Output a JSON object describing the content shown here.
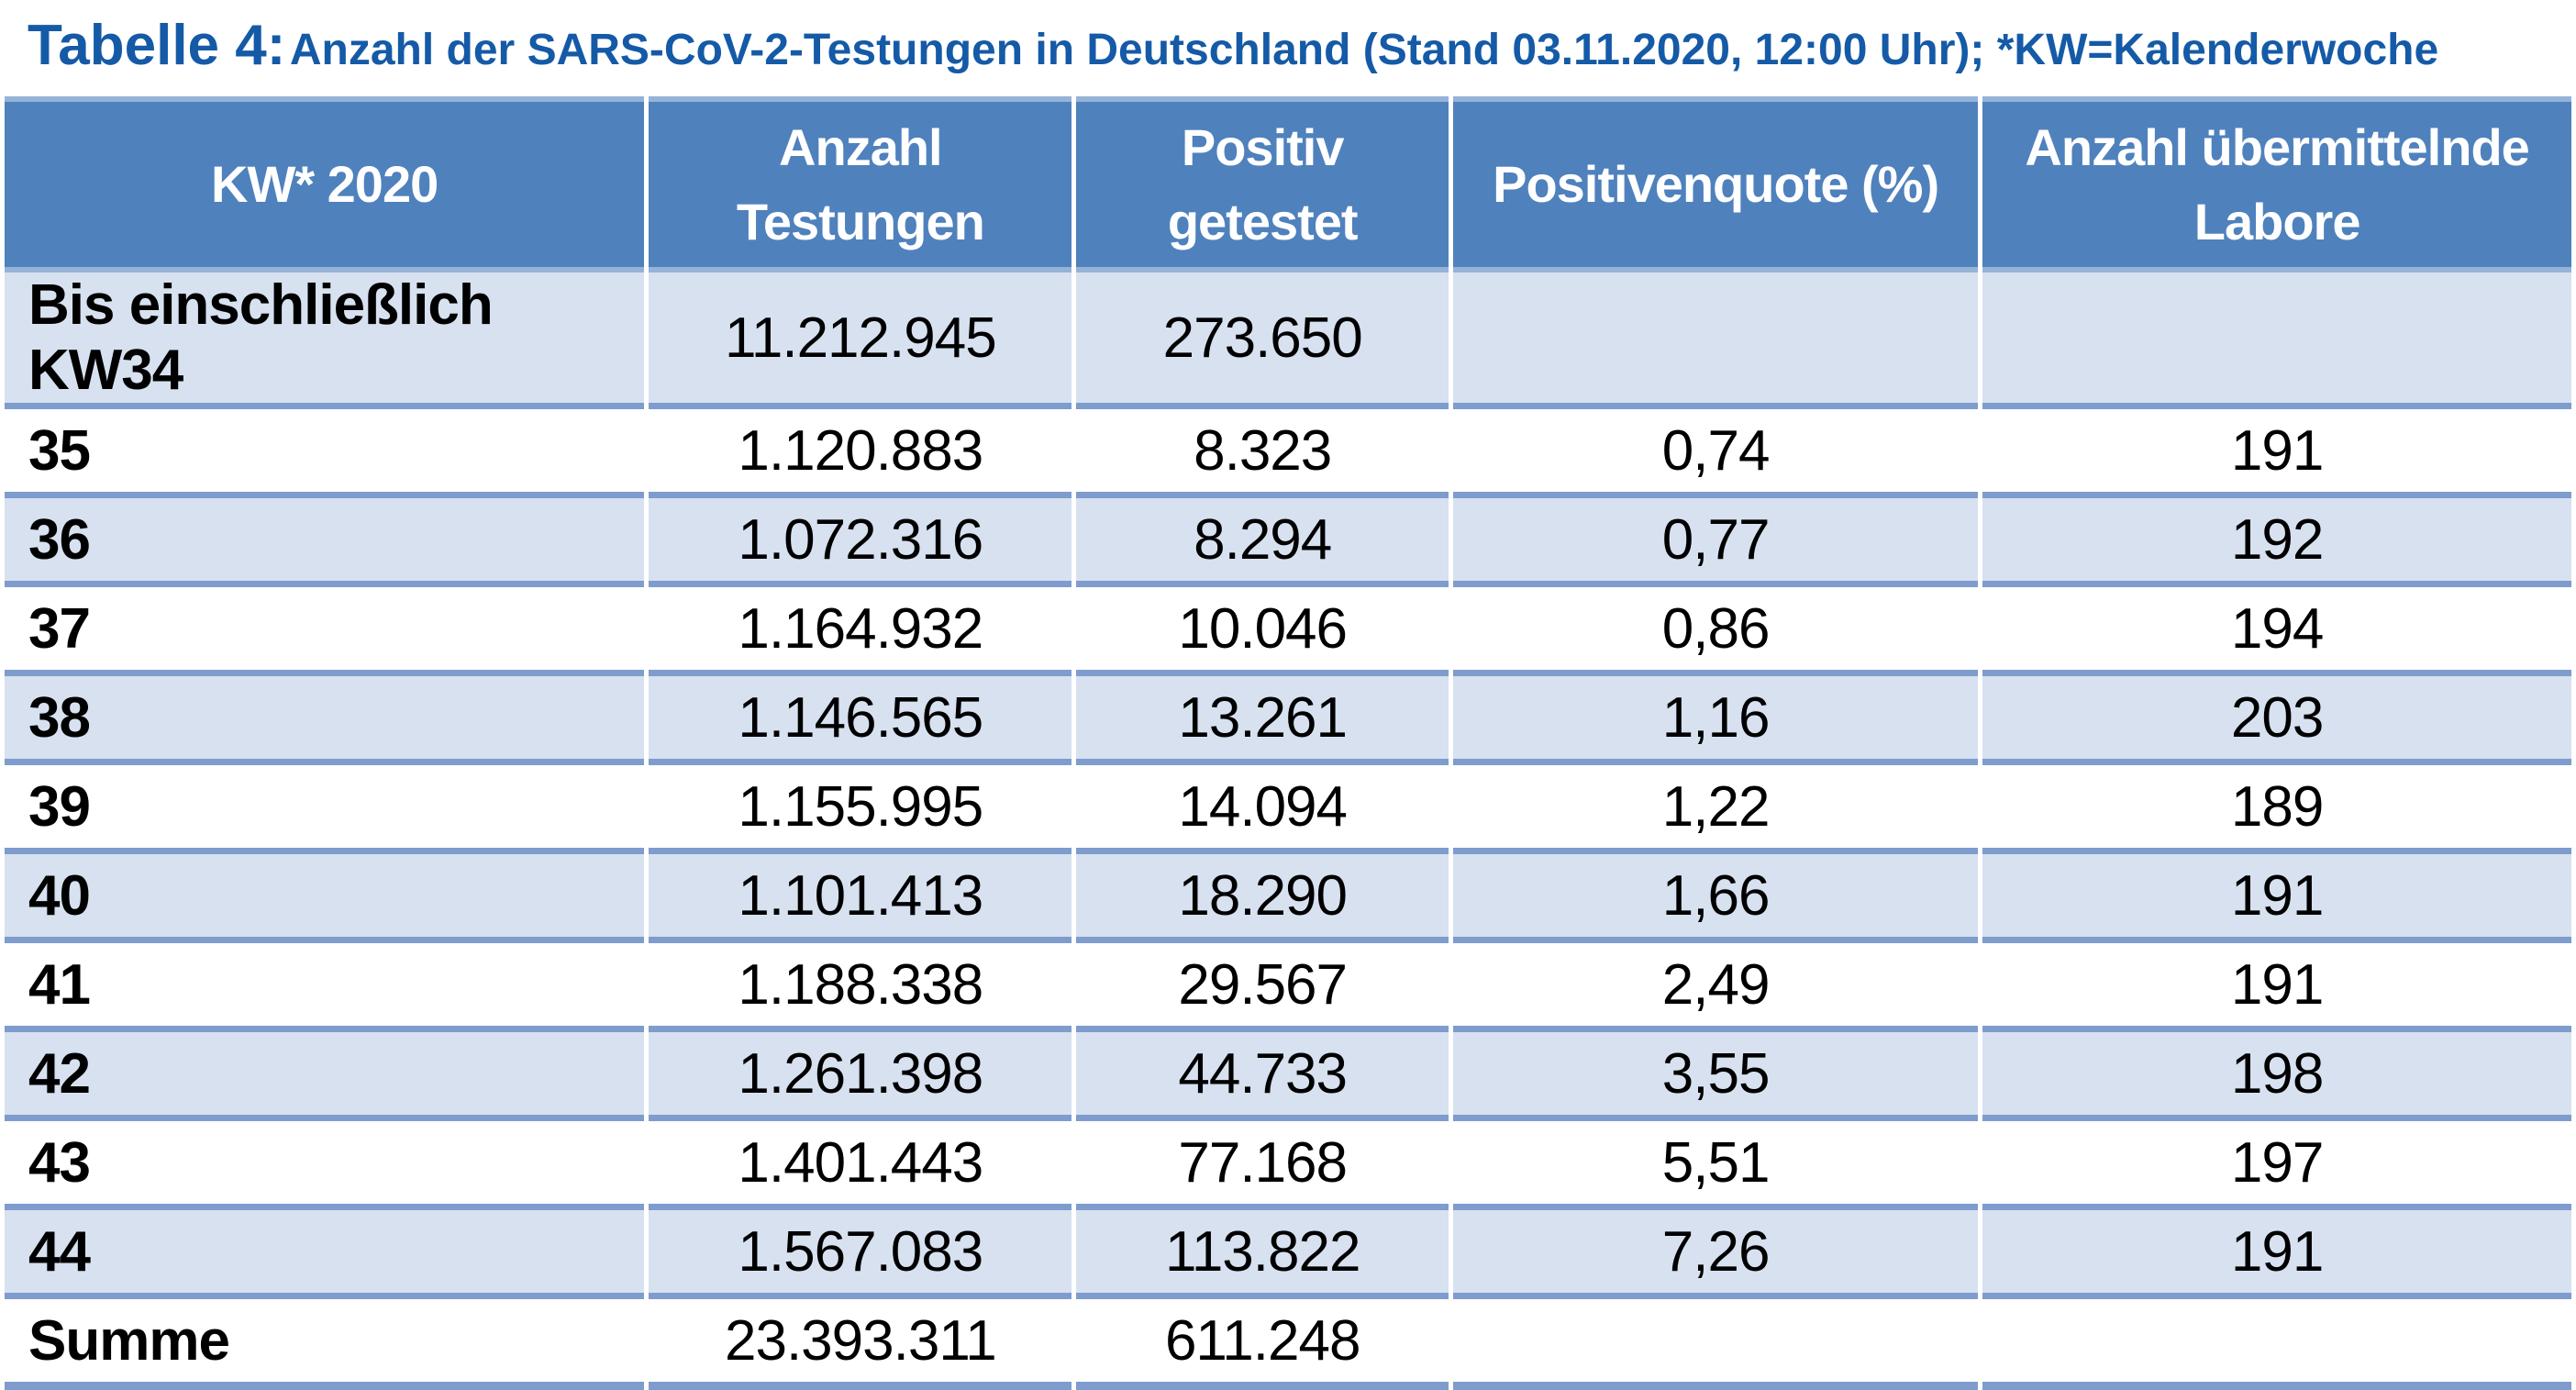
{
  "title": {
    "prefix": "Tabelle 4:",
    "rest": "Anzahl der SARS-CoV-2-Testungen in Deutschland (Stand 03.11.2020, 12:00 Uhr); *KW=Kalenderwoche"
  },
  "table": {
    "columns": [
      "KW* 2020",
      "Anzahl\nTestungen",
      "Positiv\ngetestet",
      "Positivenquote (%)",
      "Anzahl übermittelnde\nLabore"
    ],
    "rows": [
      {
        "kw": "Bis einschließlich KW34",
        "testungen": "11.212.945",
        "positiv": "273.650",
        "quote": "",
        "labore": ""
      },
      {
        "kw": "35",
        "testungen": "1.120.883",
        "positiv": "8.323",
        "quote": "0,74",
        "labore": "191"
      },
      {
        "kw": "36",
        "testungen": "1.072.316",
        "positiv": "8.294",
        "quote": "0,77",
        "labore": "192"
      },
      {
        "kw": "37",
        "testungen": "1.164.932",
        "positiv": "10.046",
        "quote": "0,86",
        "labore": "194"
      },
      {
        "kw": "38",
        "testungen": "1.146.565",
        "positiv": "13.261",
        "quote": "1,16",
        "labore": "203"
      },
      {
        "kw": "39",
        "testungen": "1.155.995",
        "positiv": "14.094",
        "quote": "1,22",
        "labore": "189"
      },
      {
        "kw": "40",
        "testungen": "1.101.413",
        "positiv": "18.290",
        "quote": "1,66",
        "labore": "191"
      },
      {
        "kw": "41",
        "testungen": "1.188.338",
        "positiv": "29.567",
        "quote": "2,49",
        "labore": "191"
      },
      {
        "kw": "42",
        "testungen": "1.261.398",
        "positiv": "44.733",
        "quote": "3,55",
        "labore": "198"
      },
      {
        "kw": "43",
        "testungen": "1.401.443",
        "positiv": "77.168",
        "quote": "5,51",
        "labore": "197"
      },
      {
        "kw": "44",
        "testungen": "1.567.083",
        "positiv": "113.822",
        "quote": "7,26",
        "labore": "191"
      },
      {
        "kw": "Summe",
        "testungen": "23.393.311",
        "positiv": "611.248",
        "quote": "",
        "labore": ""
      }
    ]
  },
  "colors": {
    "title_color": "#155aa7",
    "header_fill": "#4f81bd",
    "header_text": "#ffffff",
    "row_alt_fill": "#d7e1f0",
    "grid_line": "#7e9ccd",
    "header_edge_line": "#95b3d7",
    "body_text": "#000000",
    "page_bg": "#ffffff"
  }
}
